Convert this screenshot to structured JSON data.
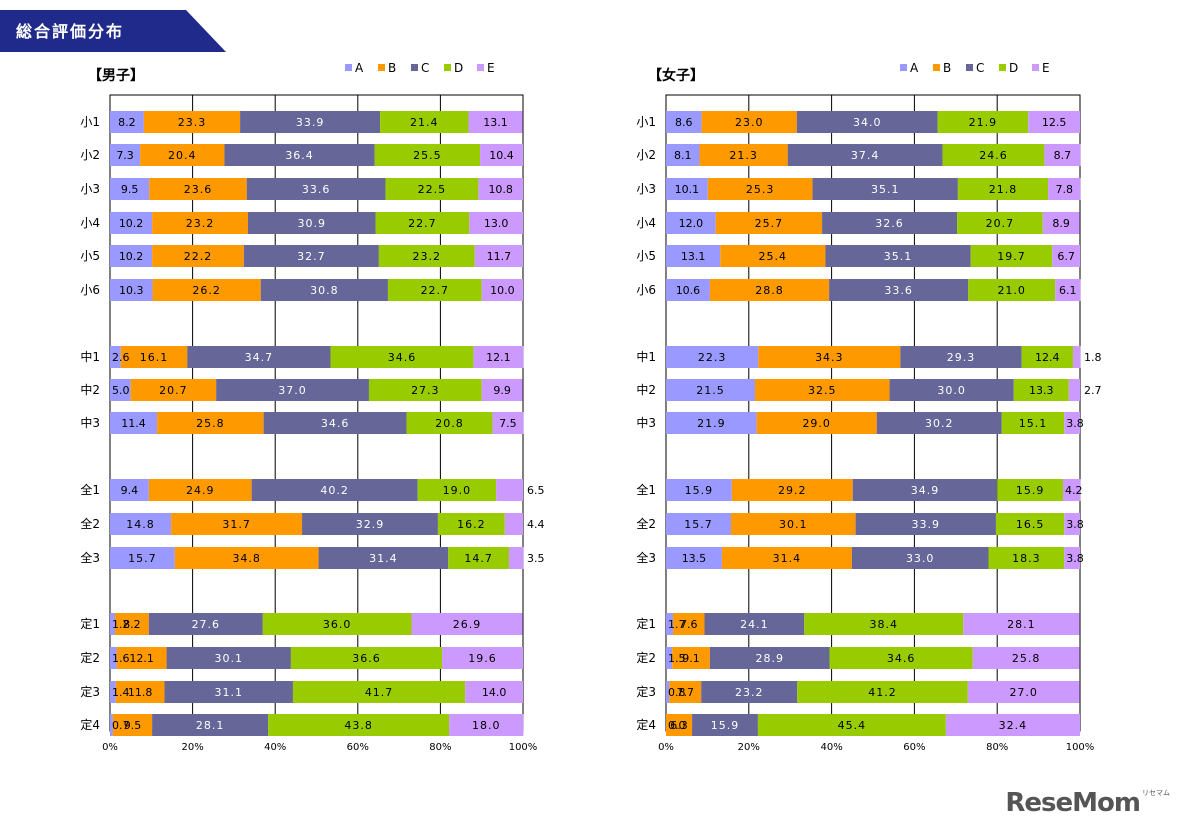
{
  "header": {
    "title": "総合評価分布"
  },
  "colors": {
    "A": "#9999ff",
    "B": "#ff9900",
    "C": "#666699",
    "D": "#99cc00",
    "E": "#cc99ff"
  },
  "legend": [
    "A",
    "B",
    "C",
    "D",
    "E"
  ],
  "chart_data": [
    {
      "type": "bar",
      "orientation": "horizontal",
      "stacked": true,
      "title": "【男子】",
      "categories": [
        "小1",
        "小2",
        "小3",
        "小4",
        "小5",
        "小6",
        "中1",
        "中2",
        "中3",
        "全1",
        "全2",
        "全3",
        "定1",
        "定2",
        "定3",
        "定4"
      ],
      "series": [
        {
          "name": "A",
          "values": [
            8.2,
            7.3,
            9.5,
            10.2,
            10.2,
            10.3,
            2.6,
            5.0,
            11.4,
            9.4,
            14.8,
            15.7,
            1.2,
            1.6,
            1.4,
            0.7
          ]
        },
        {
          "name": "B",
          "values": [
            23.3,
            20.4,
            23.6,
            23.2,
            22.2,
            26.2,
            16.1,
            20.7,
            25.8,
            24.9,
            31.7,
            34.8,
            8.2,
            12.1,
            11.8,
            9.5
          ]
        },
        {
          "name": "C",
          "values": [
            33.9,
            36.4,
            33.6,
            30.9,
            32.7,
            30.8,
            34.7,
            37.0,
            34.6,
            40.2,
            32.9,
            31.4,
            27.6,
            30.1,
            31.1,
            28.1
          ]
        },
        {
          "name": "D",
          "values": [
            21.4,
            25.5,
            22.5,
            22.7,
            23.2,
            22.7,
            34.6,
            27.3,
            20.8,
            19.0,
            16.2,
            14.7,
            36.0,
            36.6,
            41.7,
            43.8
          ]
        },
        {
          "name": "E",
          "values": [
            13.1,
            10.4,
            10.8,
            13.0,
            11.7,
            10.0,
            12.1,
            9.9,
            7.5,
            6.5,
            4.4,
            3.5,
            26.9,
            19.6,
            14.0,
            18.0
          ]
        }
      ],
      "labels": [
        [
          "8.2",
          "23.3",
          "33.9",
          "21.4",
          "13.1"
        ],
        [
          "7.3",
          "20.4",
          "36.4",
          "25.5",
          "10.4"
        ],
        [
          "9.5",
          "23.6",
          "33.6",
          "22.5",
          "10.8"
        ],
        [
          "10.2",
          "23.2",
          "30.9",
          "22.7",
          "13.0"
        ],
        [
          "10.2",
          "22.2",
          "32.7",
          "23.2",
          "11.7"
        ],
        [
          "10.3",
          "26.2",
          "30.8",
          "22.7",
          "10.0"
        ],
        [
          "2.6",
          "16.1",
          "34.7",
          "34.6",
          "12.1"
        ],
        [
          "5.0",
          "20.7",
          "37.0",
          "27.3",
          "9.9"
        ],
        [
          "11.4",
          "25.8",
          "34.6",
          "20.8",
          "7.5"
        ],
        [
          "9.4",
          "24.9",
          "40.2",
          "19.0",
          "6.5"
        ],
        [
          "14.8",
          "31.7",
          "32.9",
          "16.2",
          "4.4"
        ],
        [
          "15.7",
          "34.8",
          "31.4",
          "14.7",
          "3.5"
        ],
        [
          "1.2",
          "8.2",
          "27.6",
          "36.0",
          "26.9"
        ],
        [
          "1.6",
          "12.1",
          "30.1",
          "36.6",
          "19.6"
        ],
        [
          "1.4",
          "11.8",
          "31.1",
          "41.7",
          "14.0"
        ],
        [
          "0.7",
          "9.5",
          "28.1",
          "43.8",
          "18.0"
        ]
      ],
      "outside_labels": {
        "9": "6.5",
        "10": "4.4",
        "11": "3.5"
      },
      "xlim": [
        0,
        100
      ],
      "xticks": [
        "0%",
        "20%",
        "40%",
        "60%",
        "80%",
        "100%"
      ],
      "grid": "vertical",
      "legend_position": "top"
    },
    {
      "type": "bar",
      "orientation": "horizontal",
      "stacked": true,
      "title": "【女子】",
      "categories": [
        "小1",
        "小2",
        "小3",
        "小4",
        "小5",
        "小6",
        "中1",
        "中2",
        "中3",
        "全1",
        "全2",
        "全3",
        "定1",
        "定2",
        "定3",
        "定4"
      ],
      "series": [
        {
          "name": "A",
          "values": [
            8.6,
            8.1,
            10.1,
            12.0,
            13.1,
            10.6,
            22.3,
            21.5,
            21.9,
            15.9,
            15.7,
            13.5,
            1.7,
            1.5,
            0.8,
            0.0
          ]
        },
        {
          "name": "B",
          "values": [
            23.0,
            21.3,
            25.3,
            25.7,
            25.4,
            28.8,
            34.3,
            32.5,
            29.0,
            29.2,
            30.1,
            31.4,
            7.6,
            9.1,
            7.7,
            6.3
          ]
        },
        {
          "name": "C",
          "values": [
            34.0,
            37.4,
            35.1,
            32.6,
            35.1,
            33.6,
            29.3,
            30.0,
            30.2,
            34.9,
            33.9,
            33.0,
            24.1,
            28.9,
            23.2,
            15.9
          ]
        },
        {
          "name": "D",
          "values": [
            21.9,
            24.6,
            21.8,
            20.7,
            19.7,
            21.0,
            12.4,
            13.3,
            15.1,
            15.9,
            16.5,
            18.3,
            38.4,
            34.6,
            41.2,
            45.4
          ]
        },
        {
          "name": "E",
          "values": [
            12.5,
            8.7,
            7.8,
            8.9,
            6.7,
            6.1,
            1.8,
            2.7,
            3.8,
            4.2,
            3.8,
            3.8,
            28.1,
            25.8,
            27.0,
            32.4
          ]
        }
      ],
      "labels": [
        [
          "8.6",
          "23.0",
          "34.0",
          "21.9",
          "12.5"
        ],
        [
          "8.1",
          "21.3",
          "37.4",
          "24.6",
          "8.7"
        ],
        [
          "10.1",
          "25.3",
          "35.1",
          "21.8",
          "7.8"
        ],
        [
          "12.0",
          "25.7",
          "32.6",
          "20.7",
          "8.9"
        ],
        [
          "13.1",
          "25.4",
          "35.1",
          "19.7",
          "6.7"
        ],
        [
          "10.6",
          "28.8",
          "33.6",
          "21.0",
          "6.1"
        ],
        [
          "22.3",
          "34.3",
          "29.3",
          "12.4",
          "1.8"
        ],
        [
          "21.5",
          "32.5",
          "30.0",
          "13.3",
          "2.7"
        ],
        [
          "21.9",
          "29.0",
          "30.2",
          "15.1",
          "3.8"
        ],
        [
          "15.9",
          "29.2",
          "34.9",
          "15.9",
          "4.2"
        ],
        [
          "15.7",
          "30.1",
          "33.9",
          "16.5",
          "3.8"
        ],
        [
          "13.5",
          "31.4",
          "33.0",
          "18.3",
          "3.8"
        ],
        [
          "1.7",
          "7.6",
          "24.1",
          "38.4",
          "28.1"
        ],
        [
          "1.5",
          "9.1",
          "28.9",
          "34.6",
          "25.8"
        ],
        [
          "0.8",
          "7.7",
          "23.2",
          "41.2",
          "27.0"
        ],
        [
          "0.0",
          "6.3",
          "15.9",
          "45.4",
          "32.4"
        ]
      ],
      "outside_labels": {
        "6": "1.8",
        "7": "2.7"
      },
      "xlim": [
        0,
        100
      ],
      "xticks": [
        "0%",
        "20%",
        "40%",
        "60%",
        "80%",
        "100%"
      ],
      "grid": "vertical",
      "legend_position": "top"
    }
  ],
  "watermark": {
    "text": "ReseMom",
    "tag": "リセマム"
  }
}
